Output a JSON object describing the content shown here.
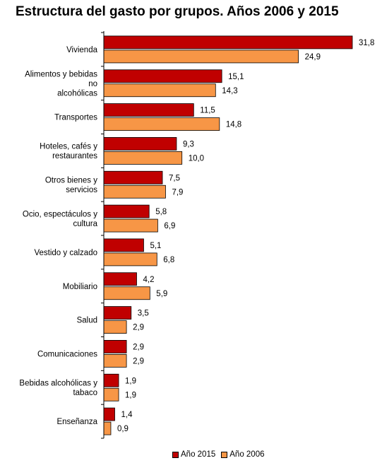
{
  "chart_data": {
    "type": "bar",
    "orientation": "horizontal",
    "title": "Estructura del gasto por grupos. Años 2006 y 2015",
    "categories": [
      [
        "Vivienda"
      ],
      [
        "Alimentos y bebidas",
        "no",
        "alcohólicas"
      ],
      [
        "Transportes"
      ],
      [
        "Hoteles, cafés y",
        "restaurantes"
      ],
      [
        "Otros bienes y",
        "servicios"
      ],
      [
        "Ocio, espectáculos y",
        "cultura"
      ],
      [
        "Vestido y calzado"
      ],
      [
        "Mobiliario"
      ],
      [
        "Salud"
      ],
      [
        "Comunicaciones"
      ],
      [
        "Bebidas alcohólicas y",
        "tabaco"
      ],
      [
        "Enseñanza"
      ]
    ],
    "series": [
      {
        "name": "Año 2015",
        "color": "#c00000",
        "values": [
          31.8,
          15.1,
          11.5,
          9.3,
          7.5,
          5.8,
          5.1,
          4.2,
          3.5,
          2.9,
          1.9,
          1.4
        ],
        "labels": [
          "31,8",
          "15,1",
          "11,5",
          "9,3",
          "7,5",
          "5,8",
          "5,1",
          "4,2",
          "3,5",
          "2,9",
          "1,9",
          "1,4"
        ]
      },
      {
        "name": "Año 2006",
        "color": "#f79646",
        "values": [
          24.9,
          14.3,
          14.8,
          10.0,
          7.9,
          6.9,
          6.8,
          5.9,
          2.9,
          2.9,
          1.9,
          0.9
        ],
        "labels": [
          "24,9",
          "14,3",
          "14,8",
          "10,0",
          "7,9",
          "6,9",
          "6,8",
          "5,9",
          "2,9",
          "2,9",
          "1,9",
          "0,9"
        ]
      }
    ],
    "xlim": [
      0,
      33
    ],
    "grid": false,
    "legend_position": "bottom"
  }
}
